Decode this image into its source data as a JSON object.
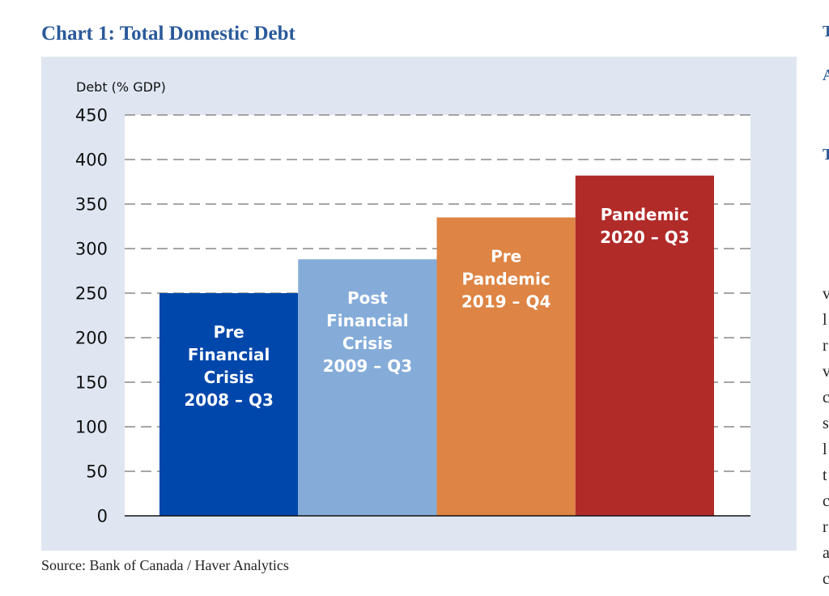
{
  "chart_data": {
    "type": "bar",
    "title": "Chart 1: Total Domestic Debt",
    "ylabel": "Debt (% GDP)",
    "xlabel": "",
    "ylim": [
      0,
      450
    ],
    "yticks": [
      0,
      50,
      100,
      150,
      200,
      250,
      300,
      350,
      400,
      450
    ],
    "grid": true,
    "legend": "none",
    "bars": [
      {
        "label_lines": [
          "Pre",
          "Financial",
          "Crisis",
          "2008 – Q3"
        ],
        "value": 250,
        "color": "#0047ab"
      },
      {
        "label_lines": [
          "Post",
          "Financial",
          "Crisis",
          "2009 – Q3"
        ],
        "value": 288,
        "color": "#85acd9"
      },
      {
        "label_lines": [
          "Pre",
          "Pandemic",
          "2019 – Q4"
        ],
        "value": 335,
        "color": "#de8444"
      },
      {
        "label_lines": [
          "Pandemic",
          "2020 – Q3"
        ],
        "value": 382,
        "color": "#b12b29"
      }
    ],
    "source": "Source: Bank of Canada / Haver Analytics"
  },
  "colors": {
    "title": "#2a5a9a",
    "frame_background": "#dfe6f2",
    "plot_background": "#ffffff",
    "grid": "#888888"
  }
}
